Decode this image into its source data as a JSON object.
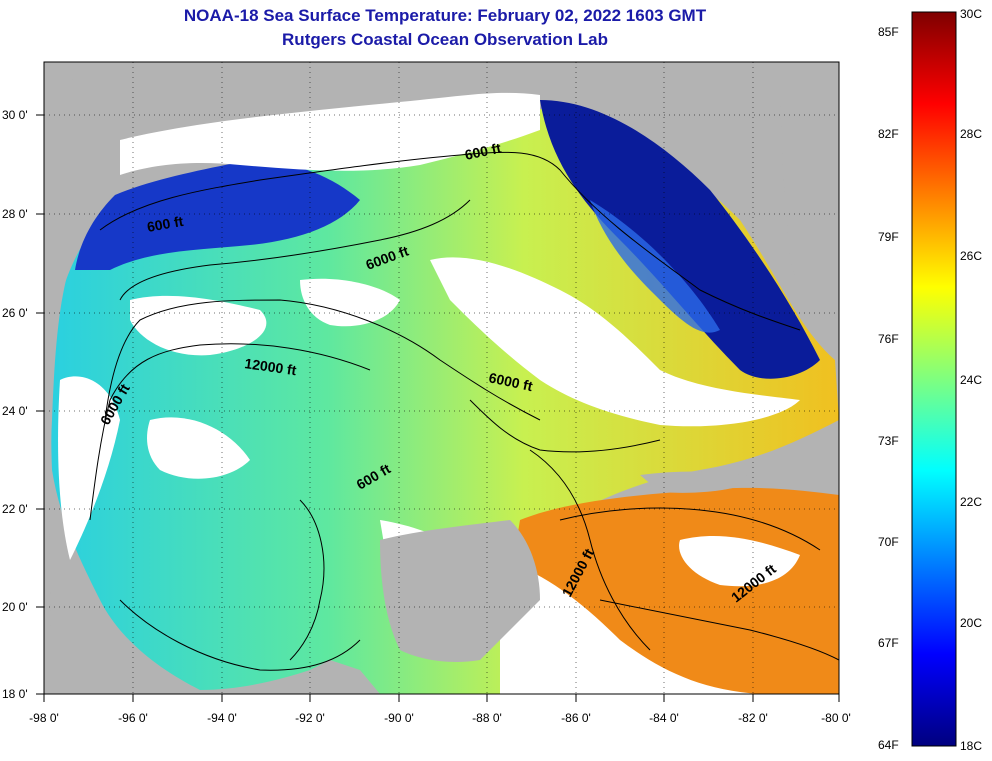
{
  "title": {
    "line1": "NOAA-18 Sea Surface Temperature:  February 02, 2022 1603 GMT",
    "line2": "Rutgers Coastal Ocean Observation Lab"
  },
  "colors": {
    "land": "#b3b3b3",
    "cloud": "#ffffff",
    "contour": "#000000",
    "scale": [
      "#00007f",
      "#0000ff",
      "#007fff",
      "#00ffff",
      "#7fff7f",
      "#ffff00",
      "#ff7f00",
      "#ff0000",
      "#7f0000"
    ]
  },
  "map": {
    "lon_ticks": [
      "-98 0'",
      "-96 0'",
      "-94 0'",
      "-92 0'",
      "-90 0'",
      "-88 0'",
      "-86 0'",
      "-84 0'",
      "-82 0'",
      "-80 0'"
    ],
    "lat_ticks": [
      "30 0'",
      "28 0'",
      "26 0'",
      "24 0'",
      "22 0'",
      "20 0'",
      "18 0'"
    ],
    "contour_labels": [
      "600 ft",
      "600 ft",
      "6000 ft",
      "12000 ft",
      "6000 ft",
      "6000 ft",
      "600 ft",
      "12000 ft",
      "12000 ft"
    ]
  },
  "colorbar": {
    "min_celsius": 18,
    "max_celsius": 30,
    "fahrenheit_labels": [
      "85F",
      "82F",
      "79F",
      "76F",
      "73F",
      "70F",
      "67F",
      "64F"
    ],
    "celsius_labels": [
      "30C",
      "28C",
      "26C",
      "24C",
      "22C",
      "20C",
      "18C"
    ]
  }
}
